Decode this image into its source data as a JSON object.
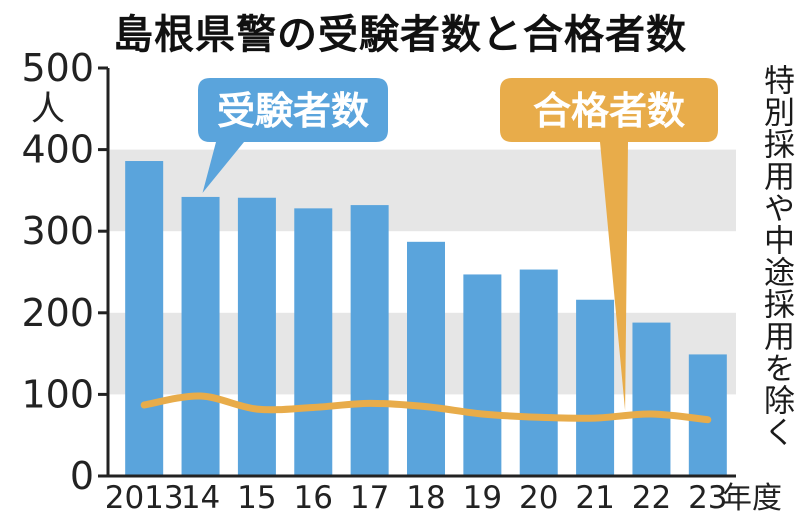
{
  "title": "島根県警の受験者数と合格者数",
  "note": "特別採用や中途採用を除く",
  "chart_data": {
    "type": "bar",
    "title": "島根県警の受験者数と合格者数",
    "categories": [
      "2013",
      "14",
      "15",
      "16",
      "17",
      "18",
      "19",
      "20",
      "21",
      "22",
      "23"
    ],
    "x_unit": "年度",
    "y_unit": "人",
    "ylim": [
      0,
      500
    ],
    "yticks": [
      0,
      100,
      200,
      300,
      400,
      500
    ],
    "grid": "horizontal bands",
    "series": [
      {
        "name": "受験者数",
        "type": "bar",
        "color": "#5aa4dc",
        "values": [
          386,
          342,
          341,
          328,
          332,
          287,
          247,
          253,
          216,
          188,
          149
        ]
      },
      {
        "name": "合格者数",
        "type": "line",
        "color": "#e8ac4a",
        "values": [
          87,
          98,
          82,
          84,
          89,
          85,
          76,
          72,
          71,
          76,
          69
        ]
      }
    ]
  }
}
